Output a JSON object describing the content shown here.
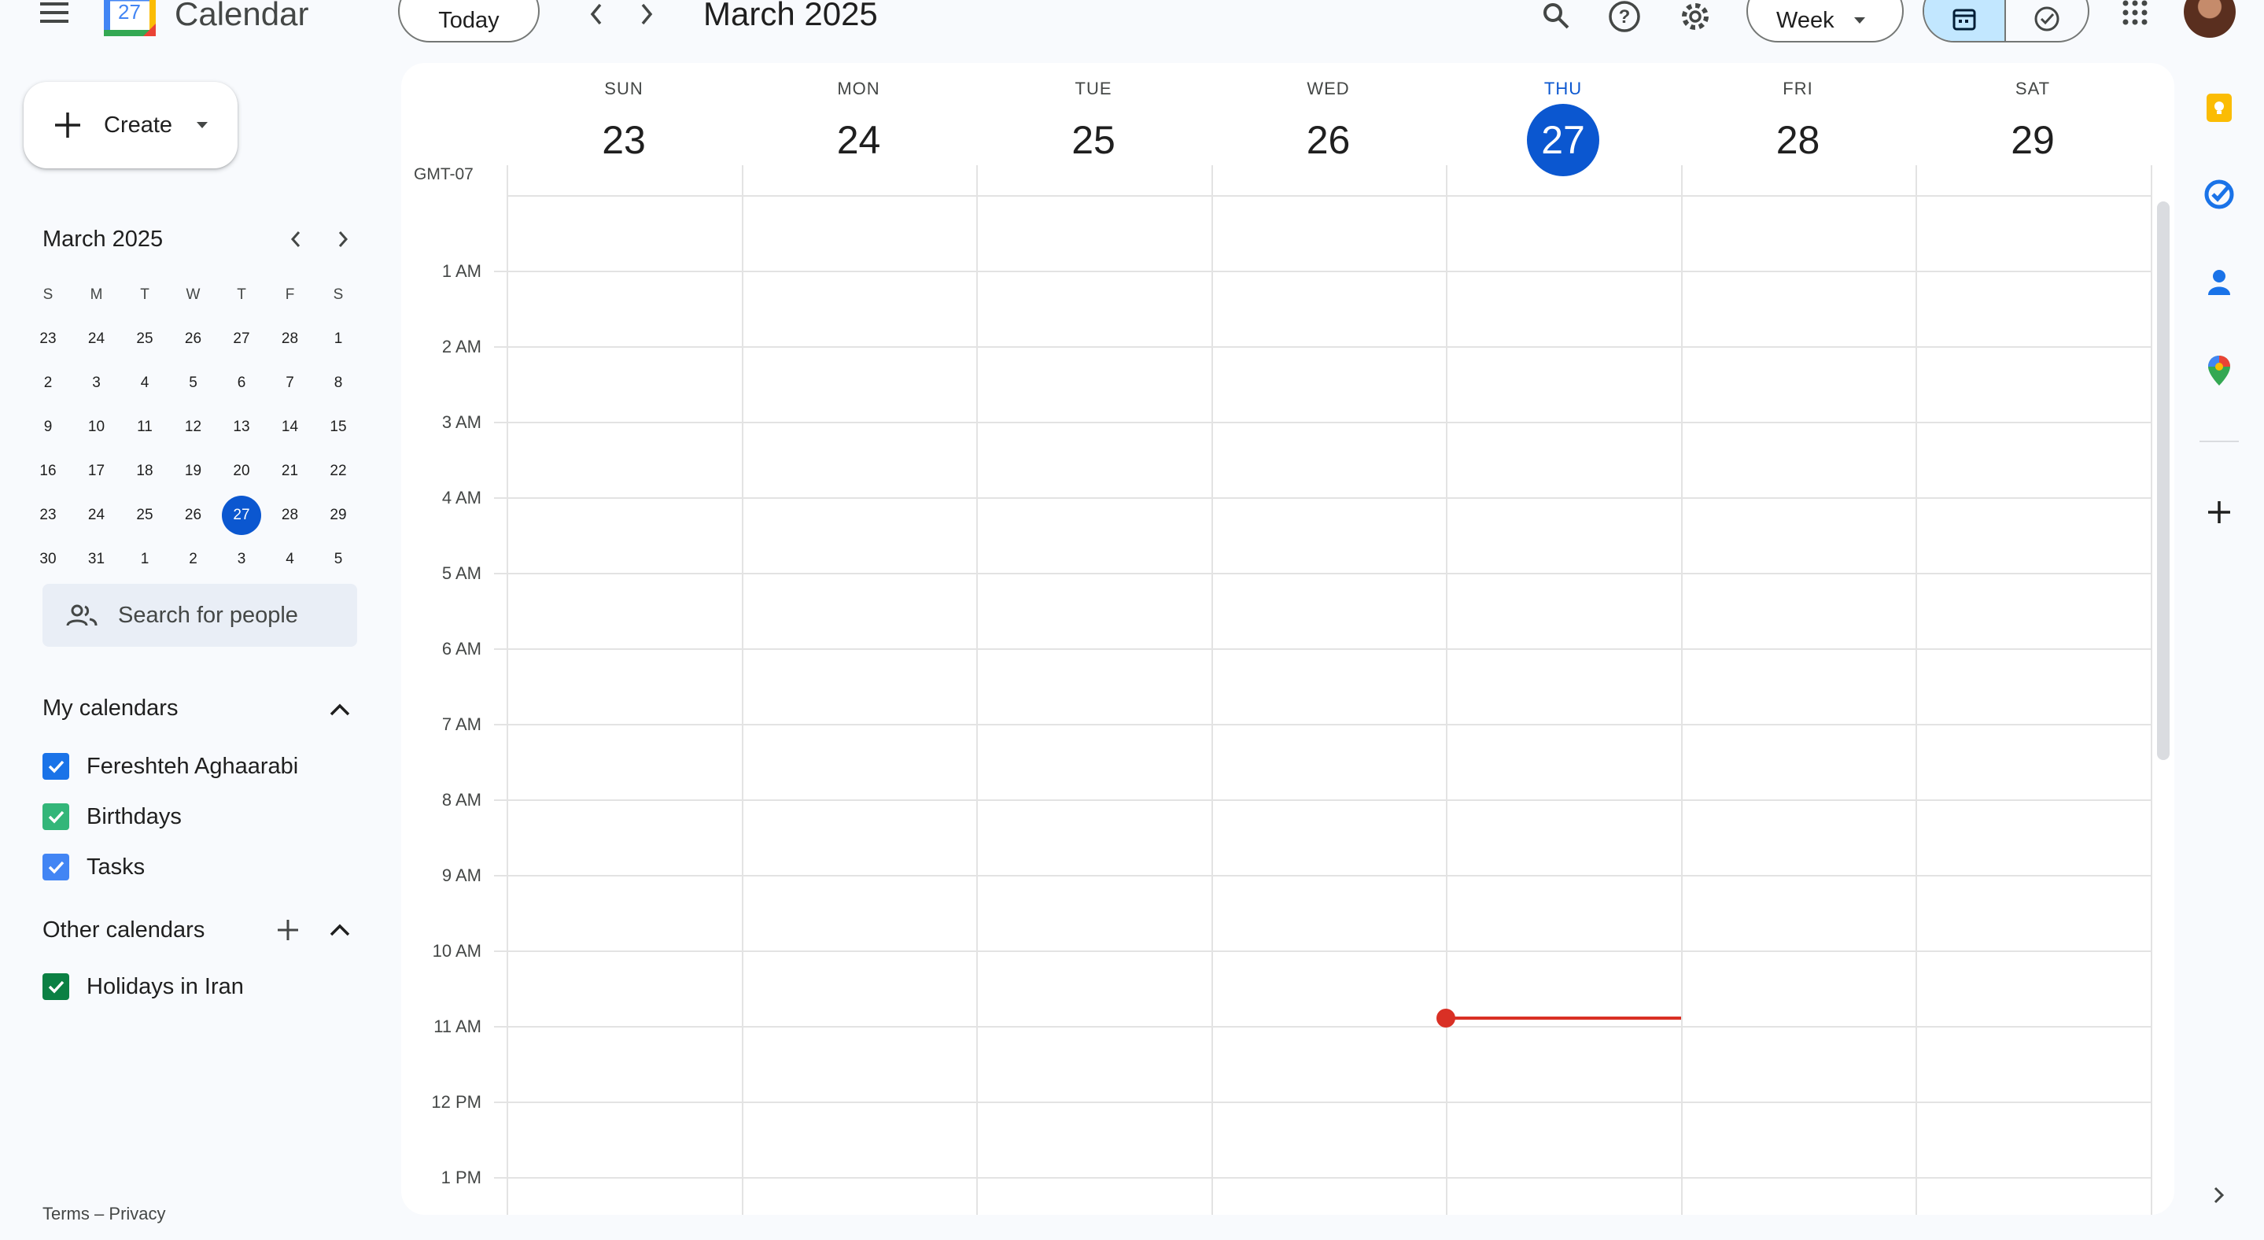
{
  "header": {
    "app_title": "Calendar",
    "logo_day": "27",
    "today_label": "Today",
    "current_period": "March 2025",
    "view_label": "Week"
  },
  "sidebar": {
    "create_label": "Create",
    "mini_calendar": {
      "title": "March 2025",
      "weekday_heads": [
        "S",
        "M",
        "T",
        "W",
        "T",
        "F",
        "S"
      ],
      "weeks": [
        [
          "23",
          "24",
          "25",
          "26",
          "27",
          "28",
          "1"
        ],
        [
          "2",
          "3",
          "4",
          "5",
          "6",
          "7",
          "8"
        ],
        [
          "9",
          "10",
          "11",
          "12",
          "13",
          "14",
          "15"
        ],
        [
          "16",
          "17",
          "18",
          "19",
          "20",
          "21",
          "22"
        ],
        [
          "23",
          "24",
          "25",
          "26",
          "27",
          "28",
          "29"
        ],
        [
          "30",
          "31",
          "1",
          "2",
          "3",
          "4",
          "5"
        ]
      ],
      "selected": "27"
    },
    "search_people_placeholder": "Search for people",
    "my_calendars": {
      "title": "My calendars",
      "items": [
        {
          "label": "Fereshteh Aghaarabi",
          "color": "#1a73e8"
        },
        {
          "label": "Birthdays",
          "color": "#33b679"
        },
        {
          "label": "Tasks",
          "color": "#4285f4"
        }
      ]
    },
    "other_calendars": {
      "title": "Other calendars",
      "items": [
        {
          "label": "Holidays in Iran",
          "color": "#0b8043"
        }
      ]
    },
    "footer": {
      "terms": "Terms",
      "separator": "–",
      "privacy": "Privacy"
    }
  },
  "week_view": {
    "timezone": "GMT-07",
    "days": [
      {
        "dow": "SUN",
        "num": "23",
        "today": false
      },
      {
        "dow": "MON",
        "num": "24",
        "today": false
      },
      {
        "dow": "TUE",
        "num": "25",
        "today": false
      },
      {
        "dow": "WED",
        "num": "26",
        "today": false
      },
      {
        "dow": "THU",
        "num": "27",
        "today": true
      },
      {
        "dow": "FRI",
        "num": "28",
        "today": false
      },
      {
        "dow": "SAT",
        "num": "29",
        "today": false
      }
    ],
    "hours": [
      "1 AM",
      "2 AM",
      "3 AM",
      "4 AM",
      "5 AM",
      "6 AM",
      "7 AM",
      "8 AM",
      "9 AM",
      "10 AM",
      "11 AM",
      "12 PM",
      "1 PM"
    ],
    "current_time_indicator_color": "#d93025"
  },
  "colors": {
    "accent": "#0b57d0",
    "background": "#f8fafd"
  },
  "right_rail": [
    "keep-icon",
    "tasks-icon",
    "contacts-icon",
    "maps-icon",
    "add-icon"
  ]
}
